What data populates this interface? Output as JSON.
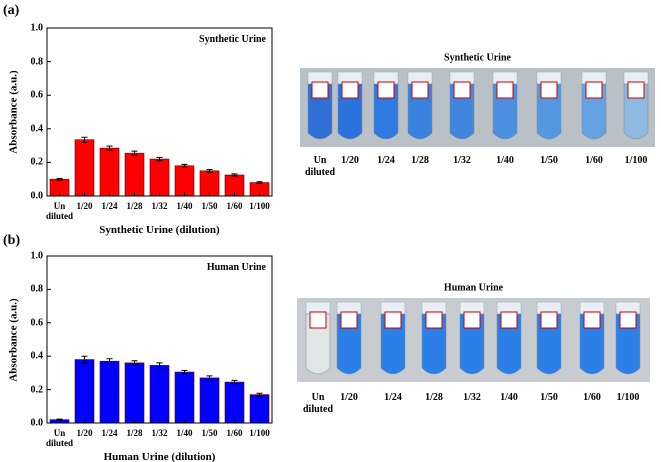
{
  "chart_data": [
    {
      "type": "bar",
      "panel_label": "(a)",
      "title": "Synthetic Urine",
      "xlabel": "Synthetic Urine (dilution)",
      "ylabel": "Absorbance (a.u.)",
      "categories": [
        "Un\ndiluted",
        "1/20",
        "1/24",
        "1/28",
        "1/32",
        "1/40",
        "1/50",
        "1/60",
        "1/100"
      ],
      "values": [
        0.1,
        0.335,
        0.285,
        0.255,
        0.22,
        0.18,
        0.15,
        0.125,
        0.08
      ],
      "errors": [
        0.005,
        0.015,
        0.012,
        0.012,
        0.01,
        0.008,
        0.008,
        0.007,
        0.005
      ],
      "color": "#ff0000",
      "ylim": [
        0,
        1
      ],
      "yticks": [
        {
          "value": 0,
          "label": "0.0"
        },
        0.2,
        0.4,
        0.6,
        0.8,
        {
          "value": 1,
          "label": "1.0"
        }
      ]
    },
    {
      "type": "bar",
      "panel_label": "(b)",
      "title": "Human Urine",
      "xlabel": "Human Urine (dilution)",
      "ylabel": "Absorbance (a.u.)",
      "categories": [
        "Un\ndiluted",
        "1/20",
        "1/24",
        "1/28",
        "1/32",
        "1/40",
        "1/50",
        "1/60",
        "1/100"
      ],
      "values": [
        0.02,
        0.38,
        0.37,
        0.36,
        0.345,
        0.305,
        0.27,
        0.245,
        0.17
      ],
      "errors": [
        0.003,
        0.02,
        0.015,
        0.013,
        0.015,
        0.01,
        0.012,
        0.01,
        0.008
      ],
      "color": "#0000ff",
      "ylim": [
        0,
        1
      ],
      "yticks": [
        {
          "value": 0,
          "label": "0.0"
        },
        0.2,
        0.4,
        0.6,
        0.8,
        {
          "value": 1,
          "label": "1.0"
        }
      ]
    }
  ],
  "photos": [
    {
      "title": "Synthetic Urine",
      "tube_labels": [
        "Un\ndiluted",
        "1/20",
        "1/24",
        "1/28",
        "1/32",
        "1/40",
        "1/50",
        "1/60",
        "1/100"
      ]
    },
    {
      "title": "Human Urine",
      "tube_labels": [
        "Un\ndiluted",
        "1/20",
        "1/24",
        "1/28",
        "1/32",
        "1/40",
        "1/50",
        "1/60",
        "1/100"
      ]
    }
  ]
}
